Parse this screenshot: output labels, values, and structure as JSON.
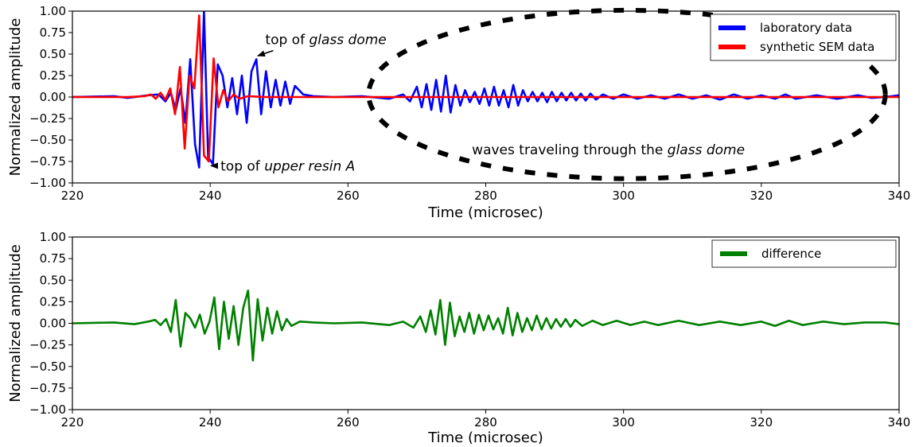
{
  "chart_data": [
    {
      "type": "line",
      "xlabel": "Time (microsec)",
      "ylabel": "Normalized amplitude",
      "xlim": [
        220,
        340
      ],
      "ylim": [
        -1.0,
        1.0
      ],
      "xticks": [
        "220",
        "240",
        "260",
        "280",
        "300",
        "320",
        "340"
      ],
      "yticks": [
        "1.00",
        "0.75",
        "0.50",
        "0.25",
        "0.00",
        "−0.25",
        "−0.50",
        "−0.75",
        "−1.00"
      ],
      "grid": false,
      "legend_position": "top-right",
      "series": [
        {
          "name": "laboratory data",
          "color": "#0000ff",
          "x": [
            220,
            226,
            228,
            231,
            232.5,
            233.5,
            234.3,
            235,
            235.7,
            236.4,
            237.1,
            237.8,
            238.4,
            239.1,
            239.7,
            240.4,
            241.1,
            241.8,
            242.5,
            243.2,
            243.9,
            244.6,
            245.3,
            246,
            246.7,
            247.4,
            248.1,
            248.8,
            249.5,
            250.2,
            250.9,
            251.6,
            252.3,
            253.5,
            255,
            258,
            262,
            266,
            268,
            269,
            270,
            270.7,
            271.4,
            272.1,
            272.8,
            273.5,
            274.2,
            274.9,
            275.6,
            276.3,
            277,
            277.7,
            278.4,
            279.1,
            279.8,
            280.5,
            281.2,
            281.9,
            282.6,
            283.3,
            284,
            284.7,
            285.4,
            286.1,
            286.8,
            287.5,
            288.2,
            288.9,
            289.6,
            290.3,
            291,
            291.7,
            292.4,
            293.1,
            293.8,
            294.5,
            295.2,
            296,
            297,
            298.5,
            300,
            302,
            304,
            306,
            308,
            310,
            312,
            314,
            316,
            318,
            320,
            322,
            323.5,
            325,
            328,
            331,
            334,
            336,
            338,
            339,
            340
          ],
          "y": [
            0.0,
            0.01,
            -0.01,
            0.02,
            0.03,
            -0.05,
            0.05,
            -0.15,
            0.1,
            -0.3,
            0.44,
            -0.55,
            -0.82,
            1.0,
            -0.7,
            -0.78,
            0.38,
            0.25,
            -0.12,
            0.22,
            -0.2,
            0.25,
            -0.3,
            0.3,
            0.44,
            -0.2,
            0.3,
            -0.12,
            0.2,
            -0.1,
            0.18,
            -0.08,
            0.13,
            0.03,
            0.01,
            0.0,
            0.01,
            -0.02,
            0.03,
            -0.05,
            0.12,
            -0.12,
            0.15,
            -0.15,
            0.2,
            -0.17,
            0.25,
            -0.18,
            0.14,
            -0.1,
            0.08,
            -0.06,
            0.06,
            -0.08,
            0.1,
            -0.1,
            0.12,
            -0.1,
            0.08,
            -0.12,
            0.14,
            -0.1,
            0.08,
            -0.05,
            0.06,
            -0.05,
            0.05,
            -0.06,
            0.06,
            -0.05,
            0.05,
            -0.04,
            0.05,
            -0.04,
            0.04,
            -0.04,
            0.04,
            -0.03,
            0.03,
            -0.02,
            0.03,
            -0.02,
            0.02,
            -0.02,
            0.03,
            -0.02,
            0.02,
            -0.03,
            0.03,
            -0.02,
            0.02,
            -0.02,
            0.03,
            -0.02,
            0.02,
            -0.02,
            0.02,
            -0.01,
            0.0,
            0.01,
            0.02
          ]
        },
        {
          "name": "synthetic SEM data",
          "color": "#ff0000",
          "x": [
            220,
            228,
            230.5,
            231.4,
            232.1,
            232.8,
            233.5,
            234.2,
            234.9,
            235.6,
            236.3,
            237,
            237.7,
            238.4,
            239.1,
            239.8,
            240.5,
            241.2,
            241.9,
            242.6,
            243.4,
            244.3,
            245.5,
            248,
            252,
            258,
            264,
            270,
            276,
            282,
            288,
            294,
            300,
            306,
            312,
            318,
            324,
            330,
            336,
            340
          ],
          "y": [
            0.0,
            0.0,
            0.01,
            0.03,
            -0.02,
            0.05,
            -0.03,
            0.1,
            -0.2,
            0.35,
            -0.6,
            0.25,
            0.1,
            0.95,
            -0.68,
            -0.75,
            0.45,
            -0.12,
            0.08,
            -0.05,
            0.03,
            -0.02,
            0.01,
            0.0,
            0.0,
            0.0,
            0.0,
            0.0,
            0.0,
            0.0,
            0.0,
            0.0,
            0.0,
            0.0,
            0.0,
            0.0,
            0.0,
            0.0,
            0.0,
            0.0
          ]
        }
      ],
      "annotations": [
        {
          "text_plain": "top of ",
          "text_italic": "glass dome",
          "x": 248,
          "y": 0.67,
          "arrow_to_x": 246.9,
          "arrow_to_y": 0.48
        },
        {
          "text_plain": "top of ",
          "text_italic": "upper resin A",
          "x": 241.5,
          "y": -0.8,
          "arrow_to_x": 240.1,
          "arrow_to_y": -0.8
        },
        {
          "text_plain": "waves traveling through the ",
          "text_italic": "glass dome",
          "x": 278,
          "y": -0.61
        }
      ],
      "ellipse": {
        "cx": 300.5,
        "cy": 0.03,
        "rx": 37.5,
        "ry": 0.98,
        "color": "#000000"
      }
    },
    {
      "type": "line",
      "xlabel": "Time (microsec)",
      "ylabel": "Normalized amplitude",
      "xlim": [
        220,
        340
      ],
      "ylim": [
        -1.0,
        1.0
      ],
      "xticks": [
        "220",
        "240",
        "260",
        "280",
        "300",
        "320",
        "340"
      ],
      "yticks": [
        "1.00",
        "0.75",
        "0.50",
        "0.25",
        "0.00",
        "−0.25",
        "−0.50",
        "−0.75",
        "−1.00"
      ],
      "grid": false,
      "legend_position": "top-right",
      "series": [
        {
          "name": "difference",
          "color": "#008000",
          "x": [
            220,
            226,
            229,
            231,
            232,
            232.8,
            233.6,
            234.3,
            235,
            235.7,
            236.4,
            237.1,
            237.8,
            238.5,
            239.2,
            239.9,
            240.6,
            241.3,
            242,
            242.7,
            243.4,
            244.1,
            244.8,
            245.5,
            246.2,
            246.9,
            247.6,
            248.3,
            249,
            249.7,
            250.4,
            251.1,
            251.8,
            253,
            255,
            258,
            262,
            266,
            268,
            269.5,
            270.5,
            271.3,
            272,
            272.7,
            273.4,
            274.1,
            274.8,
            275.5,
            276.2,
            276.9,
            277.6,
            278.3,
            279,
            279.7,
            280.4,
            281.1,
            281.8,
            282.5,
            283.2,
            283.9,
            284.6,
            285.3,
            286,
            286.7,
            287.4,
            288.1,
            288.8,
            289.5,
            290.2,
            290.9,
            291.6,
            292.3,
            293,
            294,
            295.5,
            297,
            299,
            301,
            303,
            305,
            308,
            311,
            314,
            317,
            320,
            322,
            324,
            326,
            329,
            332,
            335,
            338,
            340
          ],
          "y": [
            0.0,
            0.01,
            -0.01,
            0.02,
            0.04,
            -0.02,
            0.05,
            -0.1,
            0.27,
            -0.27,
            0.12,
            0.06,
            -0.05,
            0.1,
            -0.12,
            0.02,
            0.3,
            -0.3,
            0.25,
            -0.18,
            0.2,
            -0.25,
            0.18,
            0.38,
            -0.43,
            0.28,
            -0.2,
            0.18,
            -0.12,
            0.14,
            -0.08,
            0.05,
            -0.03,
            0.02,
            0.01,
            0.0,
            0.01,
            -0.02,
            0.02,
            -0.05,
            0.08,
            -0.1,
            0.15,
            -0.13,
            0.27,
            -0.25,
            0.24,
            -0.15,
            0.08,
            -0.1,
            0.12,
            -0.12,
            0.1,
            -0.08,
            0.09,
            -0.07,
            0.06,
            -0.12,
            0.18,
            -0.14,
            0.12,
            -0.1,
            0.06,
            -0.08,
            0.09,
            -0.07,
            0.06,
            -0.06,
            0.05,
            -0.04,
            0.05,
            -0.04,
            0.04,
            -0.03,
            0.03,
            -0.02,
            0.03,
            -0.02,
            0.02,
            -0.02,
            0.03,
            -0.02,
            0.02,
            -0.02,
            0.02,
            -0.03,
            0.03,
            -0.02,
            0.02,
            -0.01,
            0.01,
            0.01,
            -0.01
          ]
        }
      ]
    }
  ]
}
